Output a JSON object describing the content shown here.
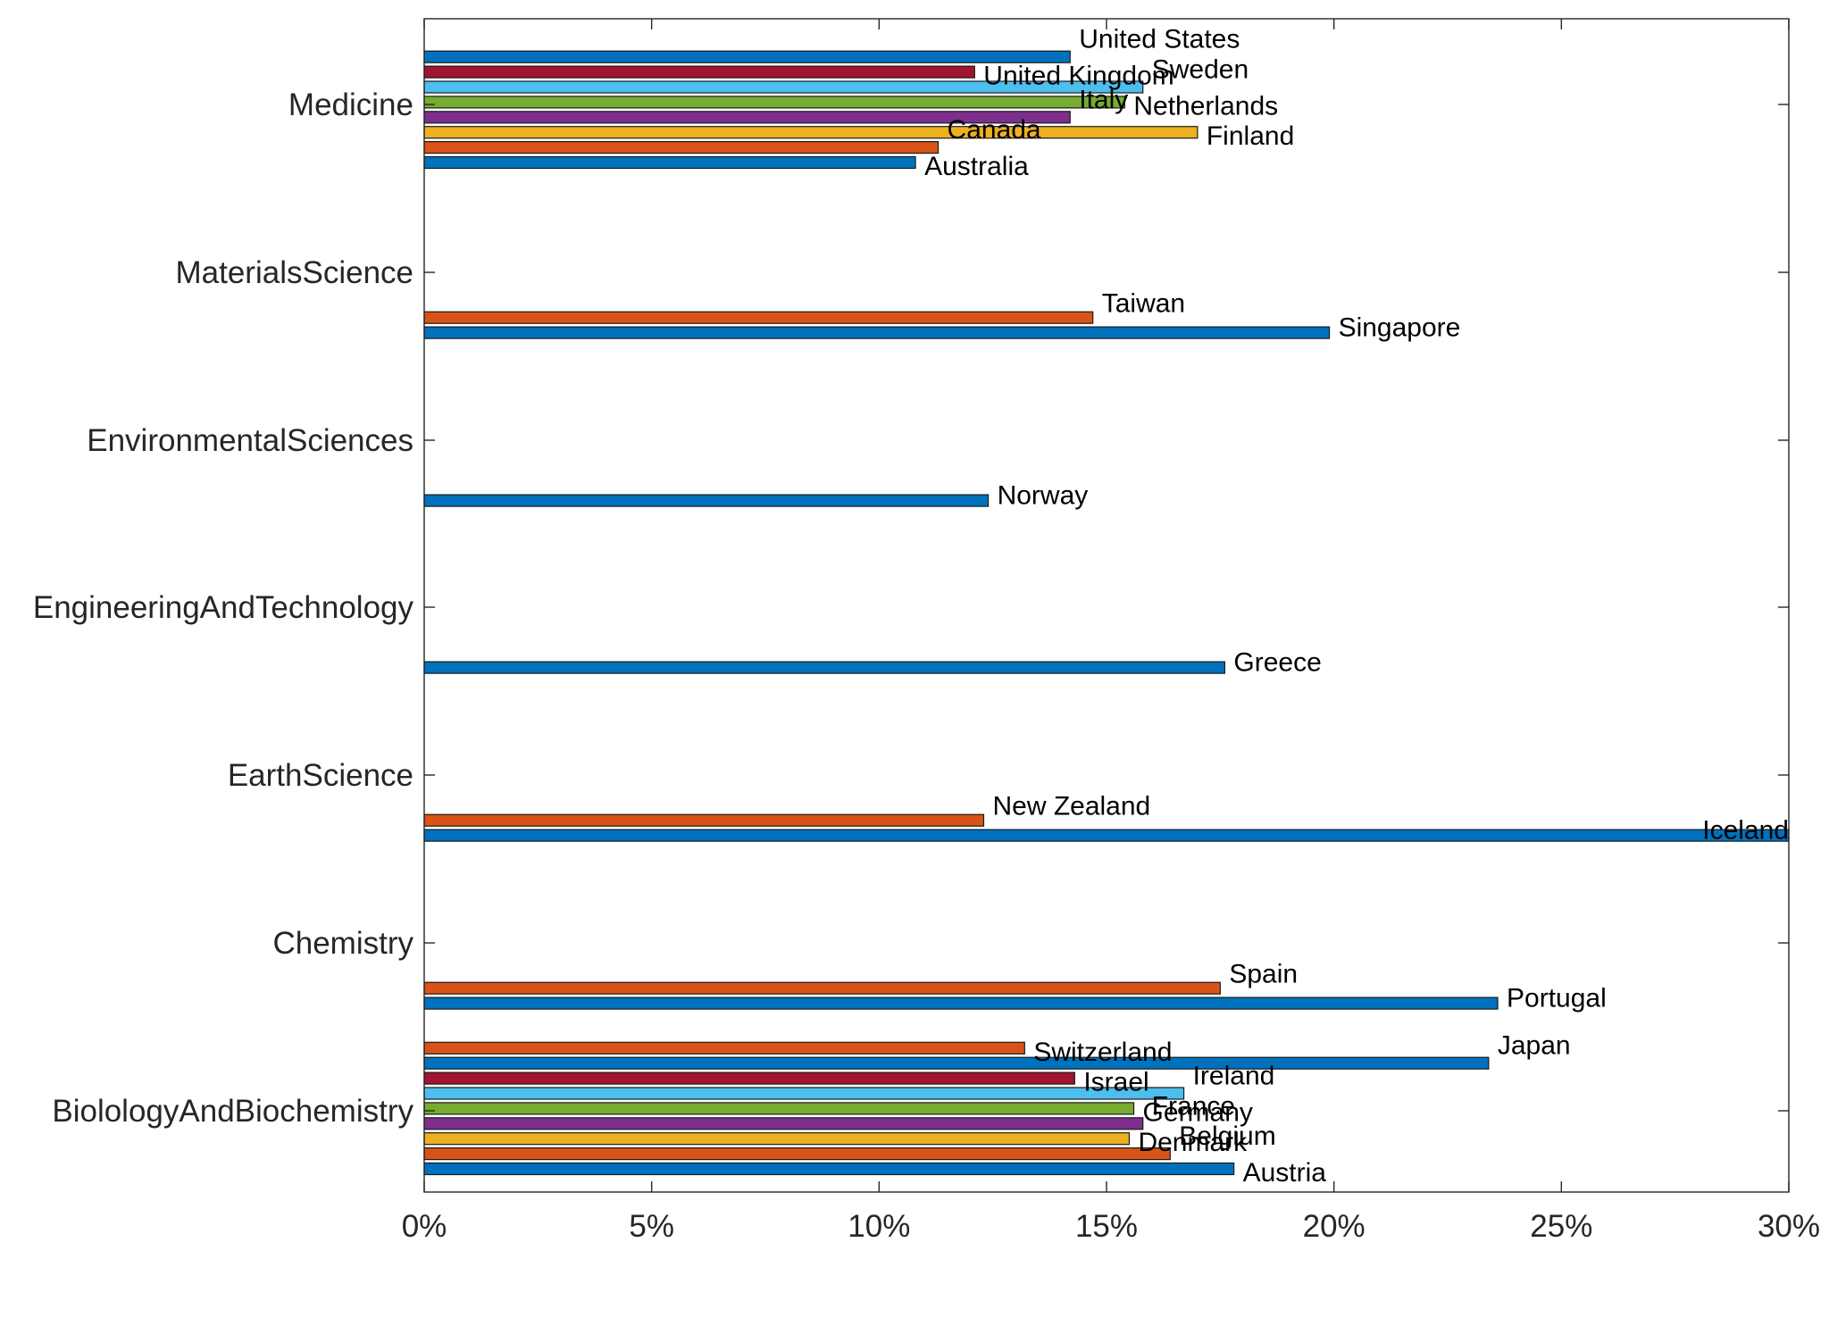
{
  "chart_data": {
    "type": "bar",
    "orientation": "horizontal",
    "title": "",
    "xlabel": "",
    "ylabel": "",
    "xlim": [
      0,
      30
    ],
    "x_ticks": [
      "0%",
      "5%",
      "10%",
      "15%",
      "20%",
      "25%",
      "30%"
    ],
    "grid": false,
    "colors": [
      "#0072BD",
      "#D95319",
      "#EDB120",
      "#7E2F8E",
      "#77AC30",
      "#4DBEEE",
      "#A2142F"
    ],
    "categories": [
      {
        "name": "Medicine",
        "bars": [
          {
            "country": "Australia",
            "value": 10.8,
            "color_index": 0
          },
          {
            "country": "Canada",
            "value": 11.3,
            "color_index": 1
          },
          {
            "country": "Finland",
            "value": 17.0,
            "color_index": 2
          },
          {
            "country": "Italy",
            "value": 14.2,
            "color_index": 3
          },
          {
            "country": "Netherlands",
            "value": 15.4,
            "color_index": 4
          },
          {
            "country": "Sweden",
            "value": 15.8,
            "color_index": 5
          },
          {
            "country": "United Kingdom",
            "value": 12.1,
            "color_index": 6
          },
          {
            "country": "United States",
            "value": 14.2,
            "color_index": 0
          }
        ]
      },
      {
        "name": "MaterialsScience",
        "bars": [
          {
            "country": "Singapore",
            "value": 19.9,
            "color_index": 0
          },
          {
            "country": "Taiwan",
            "value": 14.7,
            "color_index": 1
          }
        ]
      },
      {
        "name": "EnvironmentalSciences",
        "bars": [
          {
            "country": "Norway",
            "value": 12.4,
            "color_index": 0
          }
        ]
      },
      {
        "name": "EngineeringAndTechnology",
        "bars": [
          {
            "country": "Greece",
            "value": 17.6,
            "color_index": 0
          }
        ]
      },
      {
        "name": "EarthScience",
        "bars": [
          {
            "country": "Iceland",
            "value": 30.0,
            "color_index": 0
          },
          {
            "country": "New Zealand",
            "value": 12.3,
            "color_index": 1
          }
        ]
      },
      {
        "name": "Chemistry",
        "bars": [
          {
            "country": "Portugal",
            "value": 23.6,
            "color_index": 0
          },
          {
            "country": "Spain",
            "value": 17.5,
            "color_index": 1
          }
        ]
      },
      {
        "name": "BiolologyAndBiochemistry",
        "bars": [
          {
            "country": "Austria",
            "value": 17.8,
            "color_index": 0
          },
          {
            "country": "Belgium",
            "value": 16.4,
            "color_index": 1
          },
          {
            "country": "Denmark",
            "value": 15.5,
            "color_index": 2
          },
          {
            "country": "France",
            "value": 15.8,
            "color_index": 3
          },
          {
            "country": "Germany",
            "value": 15.6,
            "color_index": 4
          },
          {
            "country": "Ireland",
            "value": 16.7,
            "color_index": 5
          },
          {
            "country": "Israel",
            "value": 14.3,
            "color_index": 6
          },
          {
            "country": "Japan",
            "value": 23.4,
            "color_index": 0
          },
          {
            "country": "Switzerland",
            "value": 13.2,
            "color_index": 1
          }
        ]
      }
    ]
  }
}
